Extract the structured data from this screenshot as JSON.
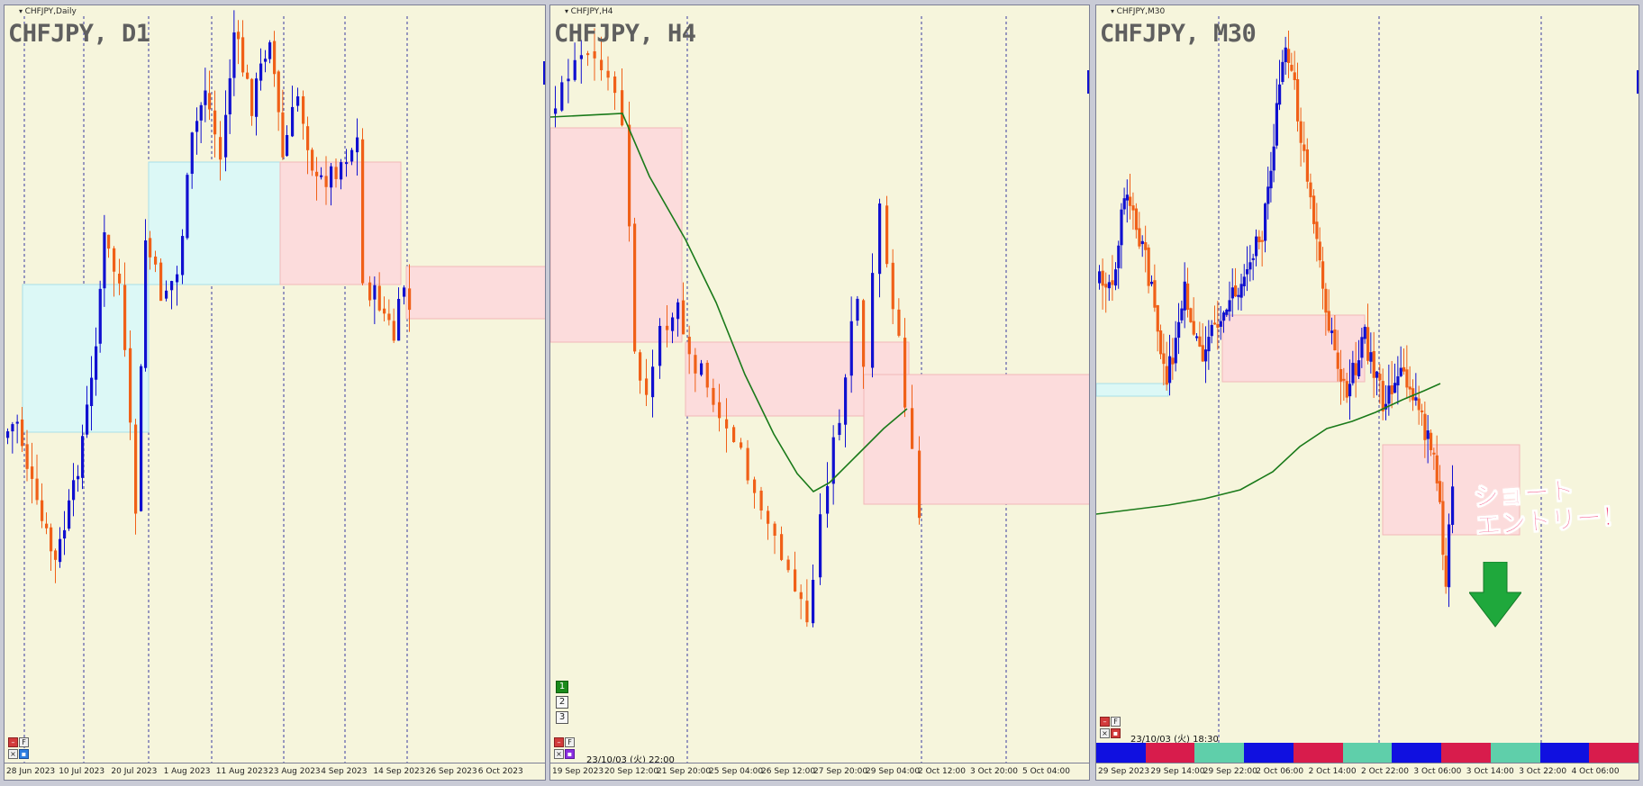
{
  "colors": {
    "background": "#f6f5dc",
    "bull": "#1010d0",
    "bear": "#f06018",
    "ma": "#1a7a1a",
    "supply_zone": "#fcdcdc",
    "demand_zone": "#dcf8f6",
    "grid": "#3a3aa0",
    "annotation": "#f0306a",
    "arrow": "#1fa83c"
  },
  "panels": [
    {
      "id": "d1",
      "symbol_label": "CHFJPY,Daily",
      "title": "CHFJPY, D1",
      "icons": [
        "minimize-icon",
        "f-icon",
        "close-icon",
        "indicator-icon"
      ],
      "ticks": [
        "28 Jun 2023",
        "10 Jul 2023",
        "20 Jul 2023",
        "1 Aug 2023",
        "11 Aug 2023",
        "23 Aug 2023",
        "4 Sep 2023",
        "14 Sep 2023",
        "26 Sep 2023",
        "6 Oct 2023"
      ]
    },
    {
      "id": "h4",
      "symbol_label": "CHFJPY,H4",
      "title": "CHFJPY, H4",
      "icons": [
        "minimize-icon",
        "f-icon",
        "close-icon",
        "indicator-icon"
      ],
      "datetime": "23/10/03 (火) 22:00",
      "buttons": [
        "1",
        "2",
        "3"
      ],
      "ticks": [
        "19 Sep 2023",
        "20 Sep 12:00",
        "21 Sep 20:00",
        "25 Sep 04:00",
        "26 Sep 12:00",
        "27 Sep 20:00",
        "29 Sep 04:00",
        "2 Oct 12:00",
        "3 Oct 20:00",
        "5 Oct 04:00"
      ]
    },
    {
      "id": "m30",
      "symbol_label": "CHFJPY,M30",
      "title": "CHFJPY, M30",
      "icons": [
        "minimize-icon",
        "f-icon",
        "close-icon",
        "indicator-icon"
      ],
      "datetime": "23/10/03 (火) 18:30",
      "ticks": [
        "29 Sep 2023",
        "29 Sep 14:00",
        "29 Sep 22:00",
        "2 Oct 06:00",
        "2 Oct 14:00",
        "2 Oct 22:00",
        "3 Oct 06:00",
        "3 Oct 14:00",
        "3 Oct 22:00",
        "4 Oct 06:00"
      ],
      "session_colors": [
        "#1010e0",
        "#d81c4c",
        "#5fcfaa",
        "#1010e0",
        "#d81c4c",
        "#5fcfaa",
        "#1010e0",
        "#d81c4c",
        "#5fcfaa",
        "#1010e0",
        "#d81c4c"
      ],
      "annotation": "ショート\nエントリー！"
    }
  ]
}
